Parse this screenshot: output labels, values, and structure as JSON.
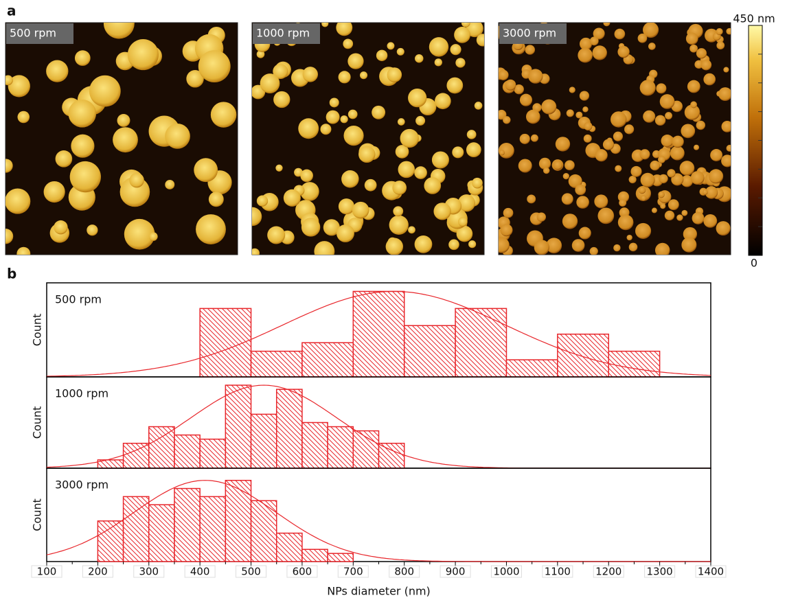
{
  "panel_a": {
    "label": "a",
    "images": [
      "500 rpm",
      "1000 rpm",
      "3000 rpm"
    ],
    "colorbar": {
      "max_label": "450 nm",
      "min_label": "0"
    }
  },
  "panel_b_label": "b",
  "chart_data": [
    {
      "type": "histogram",
      "title": "500 rpm",
      "ylabel": "Count",
      "color": "#e8262b",
      "bins": [
        400,
        500,
        600,
        700,
        800,
        900,
        1000,
        1100,
        1200,
        1300
      ],
      "values": [
        8,
        3,
        4,
        10,
        6,
        8,
        2,
        5,
        3
      ],
      "xlim": [
        100,
        1400
      ],
      "ylim": [
        0,
        11
      ],
      "fit": {
        "mean": 780,
        "sigma": 218,
        "amplitude": 10
      }
    },
    {
      "type": "histogram",
      "title": "1000 rpm",
      "ylabel": "Count",
      "color": "#e8262b",
      "bins": [
        200,
        250,
        300,
        350,
        400,
        450,
        500,
        550,
        600,
        650,
        700,
        750,
        800
      ],
      "values": [
        2,
        6,
        10,
        8,
        7,
        20,
        13,
        19,
        11,
        10,
        9,
        6
      ],
      "xlim": [
        100,
        1400
      ],
      "ylim": [
        0,
        22
      ],
      "fit": {
        "mean": 525,
        "sigma": 143,
        "amplitude": 20
      }
    },
    {
      "type": "histogram",
      "title": "3000 rpm",
      "ylabel": "Count",
      "color": "#e8262b",
      "bins": [
        200,
        250,
        300,
        350,
        400,
        450,
        500,
        550,
        600,
        650,
        700
      ],
      "values": [
        10,
        16,
        14,
        18,
        16,
        20,
        15,
        7,
        3,
        2
      ],
      "xlim": [
        100,
        1400
      ],
      "ylim": [
        0,
        23
      ],
      "xticks": [
        100,
        200,
        300,
        400,
        500,
        600,
        700,
        800,
        900,
        1000,
        1100,
        1200,
        1300,
        1400
      ],
      "xlabel": "NPs diameter (nm)",
      "fit": {
        "mean": 410,
        "sigma": 139,
        "amplitude": 20
      }
    }
  ]
}
